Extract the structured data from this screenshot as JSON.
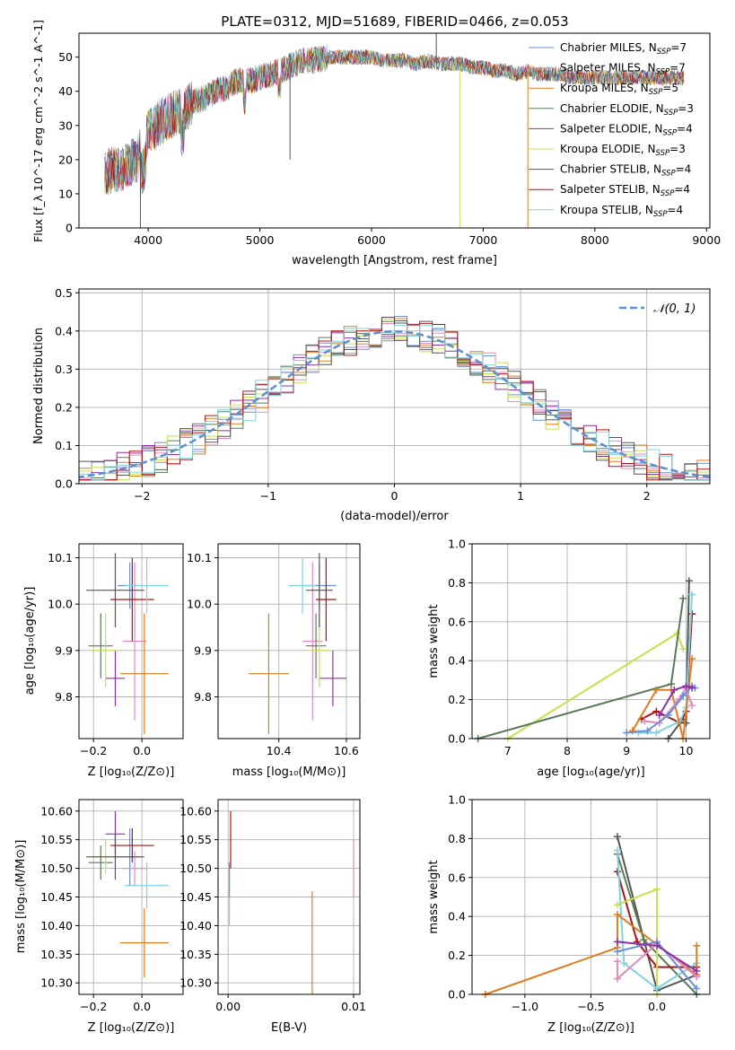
{
  "figure_title": "PLATE=0312, MJD=51689, FIBERID=0466, z=0.053",
  "colors": {
    "Chabrier MILES": "#6a8fd6",
    "Salpeter MILES": "#e28ac0",
    "Kroupa MILES": "#e07b1e",
    "Chabrier ELODIE": "#5a7a5a",
    "Salpeter ELODIE": "#8e2fa8",
    "Kroupa ELODIE": "#c8e04a",
    "Chabrier STELIB": "#555555",
    "Salpeter STELIB": "#b01212",
    "Kroupa STELIB": "#7fd3dc",
    "gaussian": "#5a8fd0",
    "grid": "#b0b0b0"
  },
  "chart_data": [
    {
      "id": "spectrum",
      "type": "line",
      "title": "PLATE=0312, MJD=51689, FIBERID=0466, z=0.053",
      "xlabel": "wavelength [Angstrom, rest frame]",
      "ylabel": "Flux [f_λ 10^-17 erg cm^-2 s^-1 A^-1]",
      "xlim": [
        3380,
        9030
      ],
      "ylim": [
        0,
        57
      ],
      "xticks": [
        4000,
        5000,
        6000,
        7000,
        8000,
        9000
      ],
      "yticks": [
        0,
        10,
        20,
        30,
        40,
        50
      ],
      "grid": false,
      "legend_position": "top-right",
      "series": [
        {
          "name": "Chabrier MILES, N_SSP=7"
        },
        {
          "name": "Salpeter MILES, N_SSP=7"
        },
        {
          "name": "Kroupa MILES, N_SSP=5"
        },
        {
          "name": "Chabrier ELODIE, N_SSP=3"
        },
        {
          "name": "Salpeter ELODIE, N_SSP=4"
        },
        {
          "name": "Kroupa ELODIE, N_SSP=3"
        },
        {
          "name": "Chabrier STELIB, N_SSP=4"
        },
        {
          "name": "Salpeter STELIB, N_SSP=4"
        },
        {
          "name": "Kroupa STELIB, N_SSP=4"
        }
      ],
      "continuum": {
        "x": [
          3600,
          3700,
          3800,
          3900,
          4000,
          4100,
          4200,
          4300,
          4400,
          4500,
          4600,
          4700,
          4800,
          4900,
          5000,
          5100,
          5200,
          5300,
          5400,
          5500,
          5600,
          5700,
          5800,
          5900,
          6000,
          6100,
          6200,
          6300,
          6400,
          6500,
          6600,
          6700,
          6800,
          6900,
          7000,
          7100,
          7200,
          7300,
          7400,
          7500,
          7600,
          7700,
          7800,
          7900,
          8000,
          8100,
          8200,
          8300,
          8400,
          8500,
          8600,
          8700,
          8800
        ],
        "y": [
          16,
          17,
          18,
          20,
          28,
          31,
          33,
          34,
          37,
          38,
          40,
          41,
          43,
          43,
          44,
          45,
          46,
          48,
          49,
          49,
          50,
          50,
          50,
          50,
          50,
          49,
          49,
          49,
          48,
          49,
          48,
          48,
          48,
          47,
          47,
          46,
          46,
          45,
          46,
          45,
          45,
          45,
          44,
          44,
          44,
          44,
          44,
          44,
          44,
          44,
          44,
          44,
          44
        ]
      },
      "spikes": [
        {
          "x": 3930,
          "y": 0
        },
        {
          "x": 5270,
          "y": 20
        },
        {
          "x": 6580,
          "y": 57
        },
        {
          "x": 6790,
          "y": 0
        },
        {
          "x": 7400,
          "y": 0
        }
      ]
    },
    {
      "id": "residuals",
      "type": "histogram",
      "xlabel": "(data-model)/error",
      "ylabel": "Normed distribution",
      "xlim": [
        -2.5,
        2.5
      ],
      "ylim": [
        0,
        0.51
      ],
      "xticks": [
        -2,
        -1,
        0,
        1,
        2
      ],
      "yticks": [
        0.0,
        0.1,
        0.2,
        0.3,
        0.4,
        0.5
      ],
      "grid": true,
      "legend_position": "top-right",
      "legend": [
        "N(0,1)"
      ],
      "bin_width": 0.1
    },
    {
      "id": "age_vs_Z",
      "type": "errorbar",
      "xlabel": "Z [log10(Z/Z_sun)]",
      "ylabel": "age [log10(age/yr)]",
      "xlim": [
        -0.26,
        0.17
      ],
      "ylim": [
        9.71,
        10.13
      ],
      "xticks": [
        -0.2,
        0.0
      ],
      "yticks": [
        9.8,
        9.9,
        10.0,
        10.1
      ],
      "grid": true,
      "points": [
        {
          "series": "Chabrier MILES",
          "x": -0.05,
          "xerr": 0.05,
          "y": 10.04,
          "yerr": 0.05
        },
        {
          "series": "Salpeter MILES",
          "x": -0.03,
          "xerr": 0.05,
          "y": 9.92,
          "yerr": 0.17
        },
        {
          "series": "Kroupa MILES",
          "x": 0.01,
          "xerr": 0.1,
          "y": 9.85,
          "yerr": 0.13
        },
        {
          "series": "Chabrier ELODIE",
          "x": -0.17,
          "xerr": 0.05,
          "y": 9.91,
          "yerr": 0.07
        },
        {
          "series": "Salpeter ELODIE",
          "x": -0.11,
          "xerr": 0.04,
          "y": 9.84,
          "yerr": 0.06
        },
        {
          "series": "Kroupa ELODIE",
          "x": -0.15,
          "xerr": 0.06,
          "y": 9.9,
          "yerr": 0.08
        },
        {
          "series": "Chabrier STELIB",
          "x": -0.11,
          "xerr": 0.12,
          "y": 10.03,
          "yerr": 0.08
        },
        {
          "series": "Salpeter STELIB",
          "x": -0.04,
          "xerr": 0.09,
          "y": 10.01,
          "yerr": 0.09
        },
        {
          "series": "Kroupa STELIB",
          "x": 0.02,
          "xerr": 0.09,
          "y": 10.04,
          "yerr": 0.06
        }
      ]
    },
    {
      "id": "age_vs_mass",
      "type": "errorbar",
      "xlabel": "mass [log10(M/M_sun)]",
      "ylabel": "",
      "xlim": [
        10.22,
        10.64
      ],
      "ylim": [
        9.71,
        10.13
      ],
      "xticks": [
        10.4,
        10.6
      ],
      "yticks": [
        9.8,
        9.9,
        10.0,
        10.1
      ],
      "grid": true,
      "points": [
        {
          "series": "Chabrier MILES",
          "x": 10.52,
          "xerr": 0.05,
          "y": 10.04,
          "yerr": 0.05
        },
        {
          "series": "Salpeter MILES",
          "x": 10.5,
          "xerr": 0.03,
          "y": 9.92,
          "yerr": 0.17
        },
        {
          "series": "Kroupa MILES",
          "x": 10.37,
          "xerr": 0.06,
          "y": 9.85,
          "yerr": 0.13
        },
        {
          "series": "Chabrier ELODIE",
          "x": 10.51,
          "xerr": 0.03,
          "y": 9.91,
          "yerr": 0.07
        },
        {
          "series": "Salpeter ELODIE",
          "x": 10.56,
          "xerr": 0.04,
          "y": 9.84,
          "yerr": 0.06
        },
        {
          "series": "Kroupa ELODIE",
          "x": 10.52,
          "xerr": 0.03,
          "y": 9.9,
          "yerr": 0.08
        },
        {
          "series": "Chabrier STELIB",
          "x": 10.52,
          "xerr": 0.04,
          "y": 10.03,
          "yerr": 0.08
        },
        {
          "series": "Salpeter STELIB",
          "x": 10.54,
          "xerr": 0.03,
          "y": 10.01,
          "yerr": 0.09
        },
        {
          "series": "Kroupa STELIB",
          "x": 10.47,
          "xerr": 0.04,
          "y": 10.04,
          "yerr": 0.06
        }
      ]
    },
    {
      "id": "mass_weight_vs_age",
      "type": "line",
      "xlabel": "age [log10(age/yr)]",
      "ylabel": "mass weight",
      "xlim": [
        6.4,
        10.4
      ],
      "ylim": [
        0,
        1.0
      ],
      "xticks": [
        7,
        8,
        9,
        10
      ],
      "yticks": [
        0.0,
        0.2,
        0.4,
        0.6,
        0.8,
        1.0
      ],
      "grid": true,
      "series": [
        {
          "series": "Kroupa ELODIE",
          "x": [
            7.0,
            9.85,
            9.95
          ],
          "y": [
            0.0,
            0.54,
            0.46
          ]
        },
        {
          "series": "Chabrier ELODIE",
          "x": [
            6.5,
            9.75,
            9.95
          ],
          "y": [
            0.0,
            0.28,
            0.72
          ]
        },
        {
          "series": "Chabrier STELIB",
          "x": [
            9.7,
            9.95,
            10.0,
            10.05
          ],
          "y": [
            0.0,
            0.1,
            0.08,
            0.81
          ]
        },
        {
          "series": "Salpeter STELIB",
          "x": [
            9.25,
            9.5,
            9.9,
            10.0,
            10.1
          ],
          "y": [
            0.1,
            0.14,
            0.08,
            0.14,
            0.64
          ]
        },
        {
          "series": "Kroupa STELIB",
          "x": [
            9.2,
            9.5,
            9.9,
            10.0,
            10.1
          ],
          "y": [
            0.03,
            0.03,
            0.09,
            0.16,
            0.74
          ]
        },
        {
          "series": "Kroupa MILES",
          "x": [
            9.1,
            9.5,
            9.75,
            9.95,
            10.1
          ],
          "y": [
            0.04,
            0.25,
            0.25,
            0.0,
            0.41
          ]
        },
        {
          "series": "Salpeter MILES",
          "x": [
            9.3,
            9.55,
            9.85,
            10.0,
            10.1
          ],
          "y": [
            0.09,
            0.08,
            0.19,
            0.26,
            0.17
          ]
        },
        {
          "series": "Chabrier MILES",
          "x": [
            9.0,
            9.35,
            9.7,
            9.95,
            10.1,
            10.15
          ],
          "y": [
            0.03,
            0.04,
            0.12,
            0.22,
            0.27,
            0.26
          ]
        },
        {
          "series": "Salpeter ELODIE",
          "x": [
            9.55,
            9.8,
            10.0,
            10.1
          ],
          "y": [
            0.12,
            0.25,
            0.27,
            0.26
          ]
        }
      ]
    },
    {
      "id": "mass_vs_Z",
      "type": "errorbar",
      "xlabel": "Z [log10(Z/Z_sun)]",
      "ylabel": "mass [log10(M/M_sun)]",
      "xlim": [
        -0.26,
        0.17
      ],
      "ylim": [
        10.28,
        10.62
      ],
      "xticks": [
        -0.2,
        0.0
      ],
      "yticks": [
        10.3,
        10.35,
        10.4,
        10.45,
        10.5,
        10.55,
        10.6
      ],
      "grid": true,
      "points": [
        {
          "series": "Chabrier MILES",
          "x": -0.05,
          "xerr": 0.05,
          "y": 10.52,
          "yerr": 0.05
        },
        {
          "series": "Salpeter MILES",
          "x": -0.03,
          "xerr": 0.05,
          "y": 10.5,
          "yerr": 0.03
        },
        {
          "series": "Kroupa MILES",
          "x": 0.01,
          "xerr": 0.1,
          "y": 10.37,
          "yerr": 0.06
        },
        {
          "series": "Chabrier ELODIE",
          "x": -0.17,
          "xerr": 0.05,
          "y": 10.51,
          "yerr": 0.03
        },
        {
          "series": "Salpeter ELODIE",
          "x": -0.11,
          "xerr": 0.04,
          "y": 10.56,
          "yerr": 0.04
        },
        {
          "series": "Kroupa ELODIE",
          "x": -0.15,
          "xerr": 0.06,
          "y": 10.52,
          "yerr": 0.03
        },
        {
          "series": "Chabrier STELIB",
          "x": -0.11,
          "xerr": 0.12,
          "y": 10.52,
          "yerr": 0.04
        },
        {
          "series": "Salpeter STELIB",
          "x": -0.04,
          "xerr": 0.09,
          "y": 10.54,
          "yerr": 0.03
        },
        {
          "series": "Kroupa STELIB",
          "x": 0.02,
          "xerr": 0.09,
          "y": 10.47,
          "yerr": 0.04
        }
      ]
    },
    {
      "id": "mass_vs_EBV",
      "type": "errorbar",
      "xlabel": "E(B-V)",
      "ylabel": "",
      "xlim": [
        -0.0008,
        0.0105
      ],
      "ylim": [
        10.28,
        10.62
      ],
      "xticks": [
        0.0,
        0.01
      ],
      "yticks": [
        10.3,
        10.35,
        10.4,
        10.45,
        10.5,
        10.55,
        10.6
      ],
      "grid": true,
      "points": [
        {
          "series": "Kroupa MILES",
          "x": 0.0067,
          "xerr": 0,
          "y": 10.37,
          "yerr": 0.09
        },
        {
          "series": "Salpeter MILES",
          "x": 0.01,
          "xerr": 0,
          "y": 10.5,
          "yerr": 0.05
        },
        {
          "series": "Salpeter STELIB",
          "x": 0.0002,
          "xerr": 0,
          "y": 10.55,
          "yerr": 0.05
        },
        {
          "series": "Kroupa STELIB",
          "x": 0.0001,
          "xerr": 0,
          "y": 10.45,
          "yerr": 0.05
        },
        {
          "series": "Chabrier MILES",
          "x": 0.0001,
          "xerr": 0,
          "y": 10.48,
          "yerr": 0.03
        }
      ]
    },
    {
      "id": "mass_weight_vs_Z",
      "type": "line",
      "xlabel": "Z [log10(Z/Z_sun)]",
      "ylabel": "mass weight",
      "xlim": [
        -1.4,
        0.4
      ],
      "ylim": [
        0,
        1.0
      ],
      "xticks": [
        -1.0,
        -0.5,
        0.0
      ],
      "yticks": [
        0.0,
        0.2,
        0.4,
        0.6,
        0.8,
        1.0
      ],
      "grid": true,
      "series": [
        {
          "series": "Chabrier STELIB",
          "x": [
            -0.3,
            0.0,
            0.3
          ],
          "y": [
            0.81,
            0.02,
            0.1
          ]
        },
        {
          "series": "Chabrier ELODIE",
          "x": [
            -0.3,
            -0.1,
            0.3
          ],
          "y": [
            0.72,
            0.28,
            0.0
          ]
        },
        {
          "series": "Salpeter STELIB",
          "x": [
            -0.3,
            -0.15,
            0.0,
            0.3
          ],
          "y": [
            0.63,
            0.27,
            0.14,
            0.14
          ]
        },
        {
          "series": "Kroupa ELODIE",
          "x": [
            -0.3,
            0.0,
            0.0
          ],
          "y": [
            0.46,
            0.54,
            0.0
          ]
        },
        {
          "series": "Kroupa STELIB",
          "x": [
            -0.3,
            -0.25,
            0.0,
            0.3
          ],
          "y": [
            0.74,
            0.16,
            0.03,
            0.16
          ]
        },
        {
          "series": "Kroupa MILES",
          "x": [
            -1.3,
            -0.3,
            -0.3,
            0.3,
            0.3
          ],
          "y": [
            0.0,
            0.24,
            0.41,
            0.1,
            0.25
          ]
        },
        {
          "series": "Salpeter MILES",
          "x": [
            -0.3,
            -0.3,
            0.0,
            0.3
          ],
          "y": [
            0.17,
            0.08,
            0.26,
            0.09
          ]
        },
        {
          "series": "Chabrier MILES",
          "x": [
            -0.3,
            0.0,
            0.3
          ],
          "y": [
            0.22,
            0.27,
            0.03
          ]
        },
        {
          "series": "Salpeter ELODIE",
          "x": [
            -0.3,
            0.0,
            0.3
          ],
          "y": [
            0.27,
            0.25,
            0.12
          ]
        }
      ]
    }
  ]
}
